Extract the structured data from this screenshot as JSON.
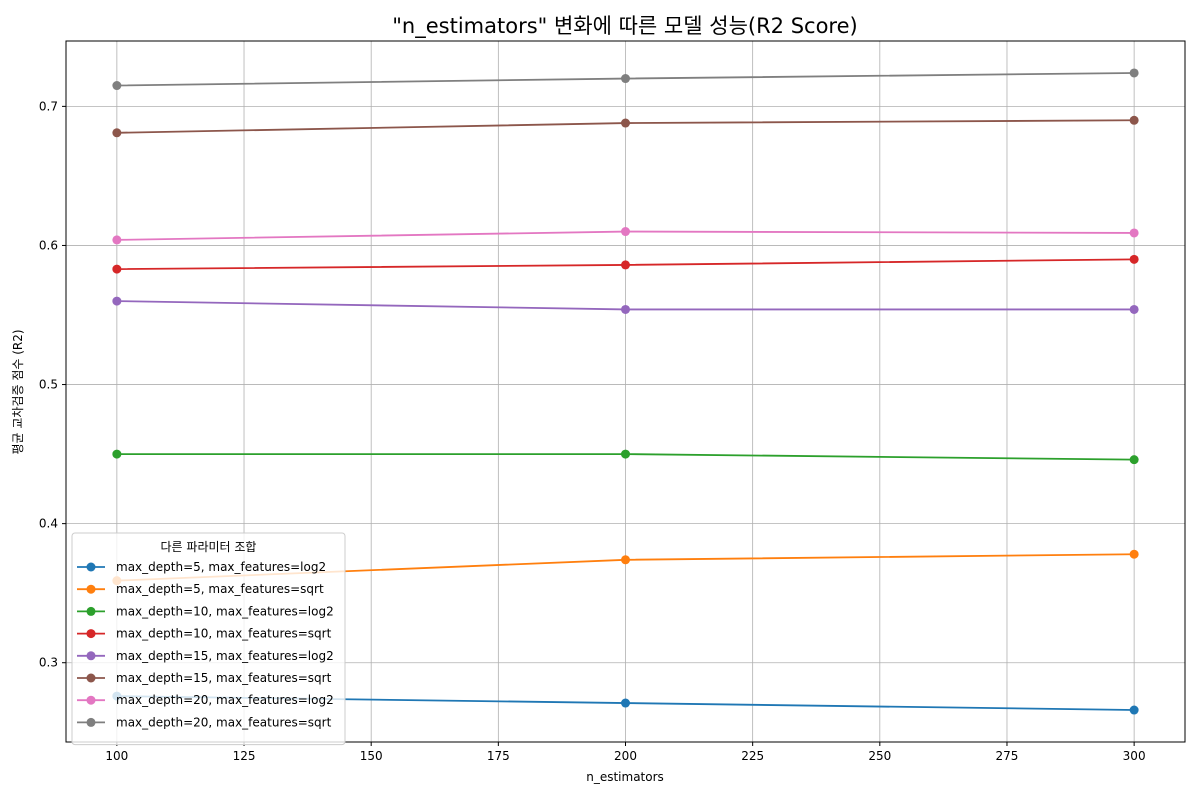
{
  "chart_data": {
    "type": "line",
    "title": "\"n_estimators\" 변화에 따른 모델 성능(R2 Score)",
    "xlabel": "n_estimators",
    "ylabel": "평균 교차검증 점수 (R2)",
    "x": [
      100,
      200,
      300
    ],
    "xlim": [
      90,
      310
    ],
    "ylim": [
      0.243,
      0.747
    ],
    "xticks": [
      100,
      125,
      150,
      175,
      200,
      225,
      250,
      275,
      300
    ],
    "yticks": [
      0.3,
      0.4,
      0.5,
      0.6,
      0.7
    ],
    "ytick_labels": [
      "0.3",
      "0.4",
      "0.5",
      "0.6",
      "0.7"
    ],
    "grid": true,
    "legend": {
      "title": "다른 파라미터 조합",
      "placement": "lower-left"
    },
    "series": [
      {
        "name": "max_depth=5, max_features=log2",
        "color": "#1f77b4",
        "values": [
          0.276,
          0.271,
          0.266
        ]
      },
      {
        "name": "max_depth=5, max_features=sqrt",
        "color": "#ff7f0e",
        "values": [
          0.359,
          0.374,
          0.378
        ]
      },
      {
        "name": "max_depth=10, max_features=log2",
        "color": "#2ca02c",
        "values": [
          0.45,
          0.45,
          0.446
        ]
      },
      {
        "name": "max_depth=10, max_features=sqrt",
        "color": "#d62728",
        "values": [
          0.583,
          0.586,
          0.59
        ]
      },
      {
        "name": "max_depth=15, max_features=log2",
        "color": "#9467bd",
        "values": [
          0.56,
          0.554,
          0.554
        ]
      },
      {
        "name": "max_depth=15, max_features=sqrt",
        "color": "#8c564b",
        "values": [
          0.681,
          0.688,
          0.69
        ]
      },
      {
        "name": "max_depth=20, max_features=log2",
        "color": "#e377c2",
        "values": [
          0.604,
          0.61,
          0.609
        ]
      },
      {
        "name": "max_depth=20, max_features=sqrt",
        "color": "#7f7f7f",
        "values": [
          0.715,
          0.72,
          0.724
        ]
      }
    ]
  }
}
